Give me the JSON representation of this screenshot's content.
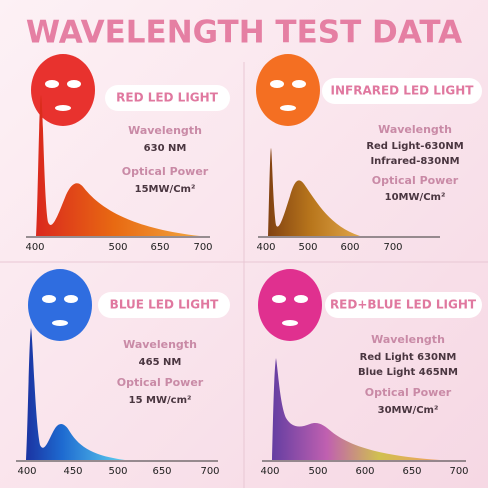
{
  "title": "WAVELENGTH TEST DATA",
  "panels": [
    {
      "label": "RED LED LIGHT",
      "specs": [
        {
          "heading": "Wavelength",
          "lines": [
            "630 NM"
          ]
        },
        {
          "heading": "Optical Power",
          "lines": [
            "15MW/Cm²"
          ]
        }
      ],
      "ticks": [
        "400",
        "500",
        "650",
        "700"
      ]
    },
    {
      "label": "INFRARED LED LIGHT",
      "specs": [
        {
          "heading": "Wavelength",
          "lines": [
            "Red Light-630NM",
            "Infrared-830NM"
          ]
        },
        {
          "heading": "Optical Power",
          "lines": [
            "10MW/Cm²"
          ]
        }
      ],
      "ticks": [
        "400",
        "500",
        "600",
        "700"
      ]
    },
    {
      "label": "BLUE LED LIGHT",
      "specs": [
        {
          "heading": "Wavelength",
          "lines": [
            "465 NM"
          ]
        },
        {
          "heading": "Optical Power",
          "lines": [
            "15 MW/cm²"
          ]
        }
      ],
      "ticks": [
        "400",
        "450",
        "500",
        "650",
        "700"
      ]
    },
    {
      "label": "RED+BLUE LED LIGHT",
      "specs": [
        {
          "heading": "Wavelength",
          "lines": [
            "Red Light 630NM",
            "Blue Light 465NM"
          ]
        },
        {
          "heading": "Optical Power",
          "lines": [
            "30MW/Cm²"
          ]
        }
      ],
      "ticks": [
        "400",
        "500",
        "600",
        "650",
        "700"
      ]
    }
  ]
}
